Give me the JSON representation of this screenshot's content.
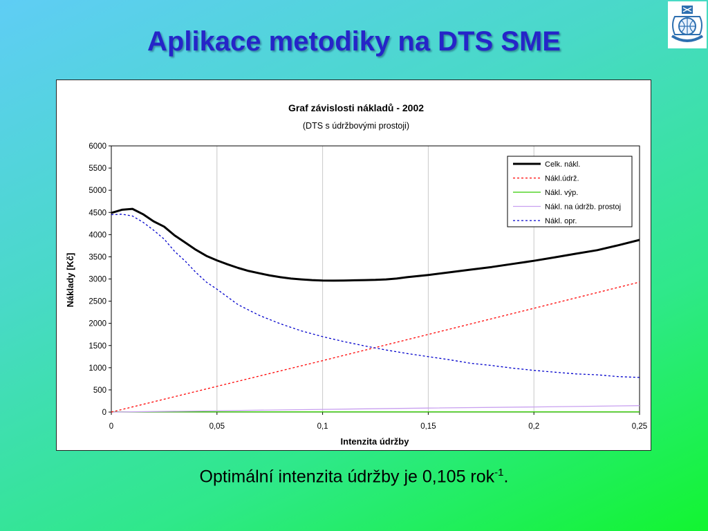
{
  "slide": {
    "title": "Aplikace metodiky na DTS SME",
    "caption_text": "Optimální intenzita údržby je 0,105 rok",
    "caption_exponent": "-1",
    "caption_end": "."
  },
  "colors": {
    "title": "#2525c8",
    "total": "#000000",
    "maintenance": "#ff0000",
    "production": "#33cc00",
    "downtime": "#c8a0f0",
    "repair": "#0000cc"
  },
  "chart_data": {
    "type": "line",
    "title": "Graf závislosti nákladů - 2002",
    "subtitle": "(DTS s údržbovými prostoji)",
    "xlabel": "Intenzita údržby",
    "ylabel": "Náklady [Kč]",
    "xlim": [
      0,
      0.25
    ],
    "ylim": [
      0,
      6000
    ],
    "x_ticks": [
      0,
      0.05,
      0.1,
      0.15,
      0.2,
      0.25
    ],
    "x_tick_labels": [
      "0",
      "0,05",
      "0,1",
      "0,15",
      "0,2",
      "0,25"
    ],
    "y_ticks": [
      0,
      500,
      1000,
      1500,
      2000,
      2500,
      3000,
      3500,
      4000,
      4500,
      5000,
      5500,
      6000
    ],
    "y_tick_labels": [
      "0",
      "500",
      "1000",
      "1500",
      "2000",
      "2500",
      "3000",
      "3500",
      "4000",
      "4500",
      "5000",
      "5500",
      "6000"
    ],
    "grid": "vertical",
    "legend_position": "top-right",
    "series": [
      {
        "name": "Celk. nákl.",
        "color": "#000000",
        "style": "solid-thick",
        "x": [
          0,
          0.005,
          0.01,
          0.015,
          0.02,
          0.025,
          0.03,
          0.035,
          0.04,
          0.045,
          0.05,
          0.055,
          0.06,
          0.065,
          0.07,
          0.075,
          0.08,
          0.085,
          0.09,
          0.095,
          0.1,
          0.105,
          0.11,
          0.115,
          0.12,
          0.125,
          0.13,
          0.135,
          0.14,
          0.15,
          0.16,
          0.17,
          0.18,
          0.19,
          0.2,
          0.21,
          0.22,
          0.23,
          0.24,
          0.25
        ],
        "values": [
          4490,
          4560,
          4580,
          4460,
          4300,
          4180,
          3980,
          3820,
          3660,
          3520,
          3420,
          3330,
          3250,
          3180,
          3130,
          3080,
          3040,
          3010,
          2990,
          2975,
          2965,
          2962,
          2965,
          2970,
          2975,
          2980,
          2990,
          3010,
          3040,
          3090,
          3150,
          3210,
          3270,
          3340,
          3410,
          3490,
          3570,
          3650,
          3760,
          3880
        ]
      },
      {
        "name": "Nákl.údrž.",
        "color": "#ff0000",
        "style": "dotted",
        "x": [
          0,
          0.05,
          0.1,
          0.15,
          0.2,
          0.25
        ],
        "values": [
          0,
          580,
          1160,
          1750,
          2340,
          2930
        ]
      },
      {
        "name": "Nákl. výp.",
        "color": "#33cc00",
        "style": "solid",
        "x": [
          0,
          0.05,
          0.1,
          0.15,
          0.2,
          0.25
        ],
        "values": [
          5,
          5,
          5,
          5,
          5,
          5
        ]
      },
      {
        "name": "Nákl. na údržb. prostoj",
        "color": "#c8a0f0",
        "style": "solid",
        "x": [
          0,
          0.05,
          0.1,
          0.15,
          0.2,
          0.25
        ],
        "values": [
          0,
          30,
          60,
          90,
          115,
          145
        ]
      },
      {
        "name": "Nákl. opr.",
        "color": "#0000cc",
        "style": "dotted",
        "x": [
          0,
          0.005,
          0.01,
          0.015,
          0.02,
          0.025,
          0.03,
          0.035,
          0.04,
          0.045,
          0.05,
          0.06,
          0.07,
          0.08,
          0.09,
          0.1,
          0.11,
          0.12,
          0.13,
          0.14,
          0.15,
          0.16,
          0.17,
          0.18,
          0.19,
          0.2,
          0.21,
          0.22,
          0.23,
          0.24,
          0.25
        ],
        "values": [
          4450,
          4460,
          4420,
          4280,
          4100,
          3900,
          3620,
          3400,
          3150,
          2930,
          2770,
          2420,
          2180,
          1990,
          1830,
          1700,
          1590,
          1490,
          1400,
          1320,
          1250,
          1180,
          1100,
          1050,
          990,
          940,
          900,
          860,
          840,
          800,
          780
        ]
      }
    ]
  }
}
